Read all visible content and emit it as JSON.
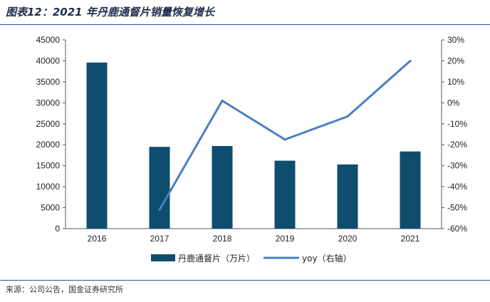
{
  "figure": {
    "title": "图表12：2021 年丹鹿通督片销量恢复增长",
    "source": "来源：公司公告，国金证券研究所"
  },
  "chart_data": {
    "type": "bar",
    "categories": [
      "2016",
      "2017",
      "2018",
      "2019",
      "2020",
      "2021"
    ],
    "series": [
      {
        "name": "丹鹿通督片（万片）",
        "type": "bar",
        "axis": "left",
        "values": [
          39600,
          19500,
          19700,
          16200,
          15300,
          18400
        ],
        "color": "#0e4d6e"
      },
      {
        "name": "yoy（右轴）",
        "type": "line",
        "axis": "right",
        "values": [
          null,
          -0.51,
          0.01,
          -0.175,
          -0.065,
          0.2
        ],
        "color": "#4a7fc1"
      }
    ],
    "y_left": {
      "min": 0,
      "max": 45000,
      "step": 5000,
      "ticks": [
        "0",
        "5000",
        "10000",
        "15000",
        "20000",
        "25000",
        "30000",
        "35000",
        "40000",
        "45000"
      ]
    },
    "y_right": {
      "min": -0.6,
      "max": 0.3,
      "step": 0.1,
      "ticks": [
        "-60%",
        "-50%",
        "-40%",
        "-30%",
        "-20%",
        "-10%",
        "0%",
        "10%",
        "20%",
        "30%"
      ]
    },
    "legend": [
      "丹鹿通督片（万片）",
      "yoy（右轴）"
    ],
    "legend_position": "bottom",
    "grid": false
  }
}
